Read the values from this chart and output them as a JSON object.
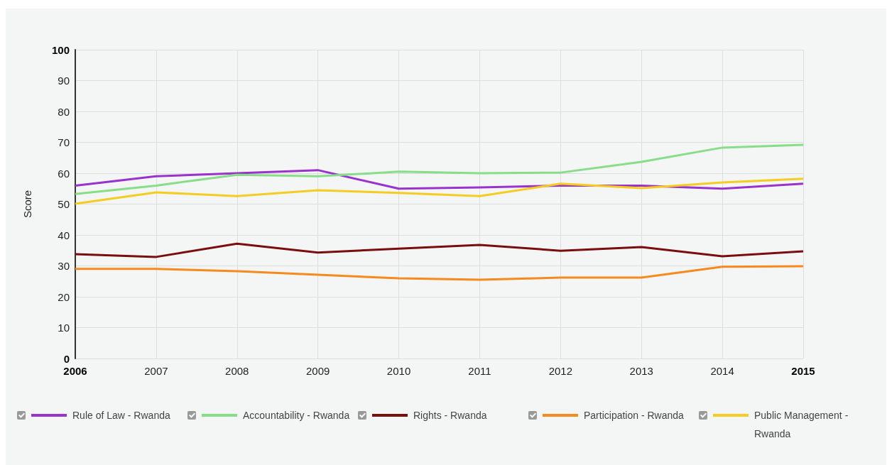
{
  "chart_data": {
    "type": "line",
    "ylabel": "Score",
    "categories": [
      "2006",
      "2007",
      "2008",
      "2009",
      "2010",
      "2011",
      "2012",
      "2013",
      "2014",
      "2015"
    ],
    "ylim": [
      0,
      100
    ],
    "yticks": [
      0,
      10,
      20,
      30,
      40,
      50,
      60,
      70,
      80,
      90,
      100
    ],
    "grid": true,
    "legend": "bottom",
    "marker": "none",
    "line_style": "solid",
    "series": [
      {
        "name": "Rule of Law - Rwanda",
        "color": "#9933cc",
        "values": [
          56,
          59,
          60,
          61,
          55,
          55.4,
          56,
          56,
          55,
          56.6
        ]
      },
      {
        "name": "Accountability - Rwanda",
        "color": "#88dd88",
        "values": [
          53.3,
          56,
          59.5,
          59,
          60.5,
          60,
          60.2,
          63.7,
          68.3,
          69.2
        ]
      },
      {
        "name": "Rights - Rwanda",
        "color": "#7a0e0e",
        "values": [
          33.8,
          32.9,
          37.2,
          34.3,
          35.6,
          36.8,
          34.9,
          36.1,
          33.1,
          34.7
        ]
      },
      {
        "name": "Participation - Rwanda",
        "color": "#f58a1f",
        "values": [
          29,
          29,
          28.3,
          27.1,
          26,
          25.5,
          26.2,
          26.2,
          29.7,
          29.9
        ]
      },
      {
        "name": "Public Management - Rwanda",
        "color": "#f5cc22",
        "values": [
          50.1,
          53.8,
          52.6,
          54.5,
          53.6,
          52.6,
          56.6,
          55.2,
          57,
          58.2
        ]
      }
    ]
  }
}
